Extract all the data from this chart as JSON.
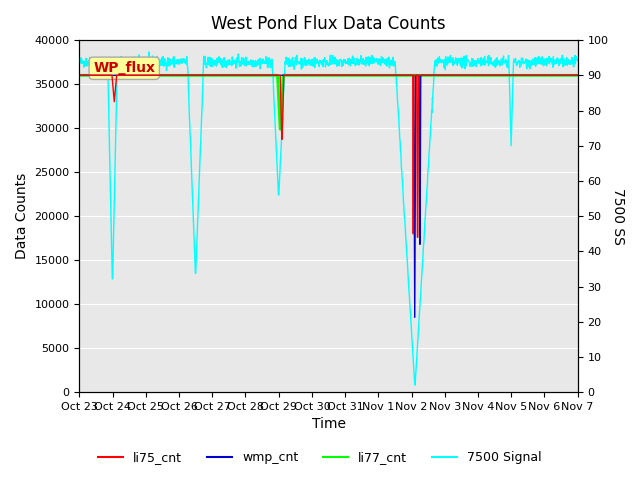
{
  "title": "West Pond Flux Data Counts",
  "xlabel": "Time",
  "ylabel_left": "Data Counts",
  "ylabel_right": "7500 SS",
  "ylim_left": [
    0,
    40000
  ],
  "ylim_right": [
    0,
    100
  ],
  "xlim": [
    0,
    15
  ],
  "x_tick_labels": [
    "Oct 23",
    "Oct 24",
    "Oct 25",
    "Oct 26",
    "Oct 27",
    "Oct 28",
    "Oct 29",
    "Oct 30",
    "Oct 31",
    "Nov 1",
    "Nov 2",
    "Nov 3",
    "Nov 4",
    "Nov 5",
    "Nov 6",
    "Nov 7"
  ],
  "x_tick_positions": [
    0,
    1,
    2,
    3,
    4,
    5,
    6,
    7,
    8,
    9,
    10,
    11,
    12,
    13,
    14,
    15
  ],
  "li77_cnt_value": 36000,
  "li77_color": "#00ff00",
  "li75_color": "#ff0000",
  "wmp_color": "#0000cc",
  "signal_color": "#00ffff",
  "background_color": "#e8e8e8",
  "wp_flux_box_color": "#ffff99",
  "wp_flux_text_color": "#cc0000",
  "legend_labels": [
    "li75_cnt",
    "wmp_cnt",
    "li77_cnt",
    "7500 Signal"
  ]
}
